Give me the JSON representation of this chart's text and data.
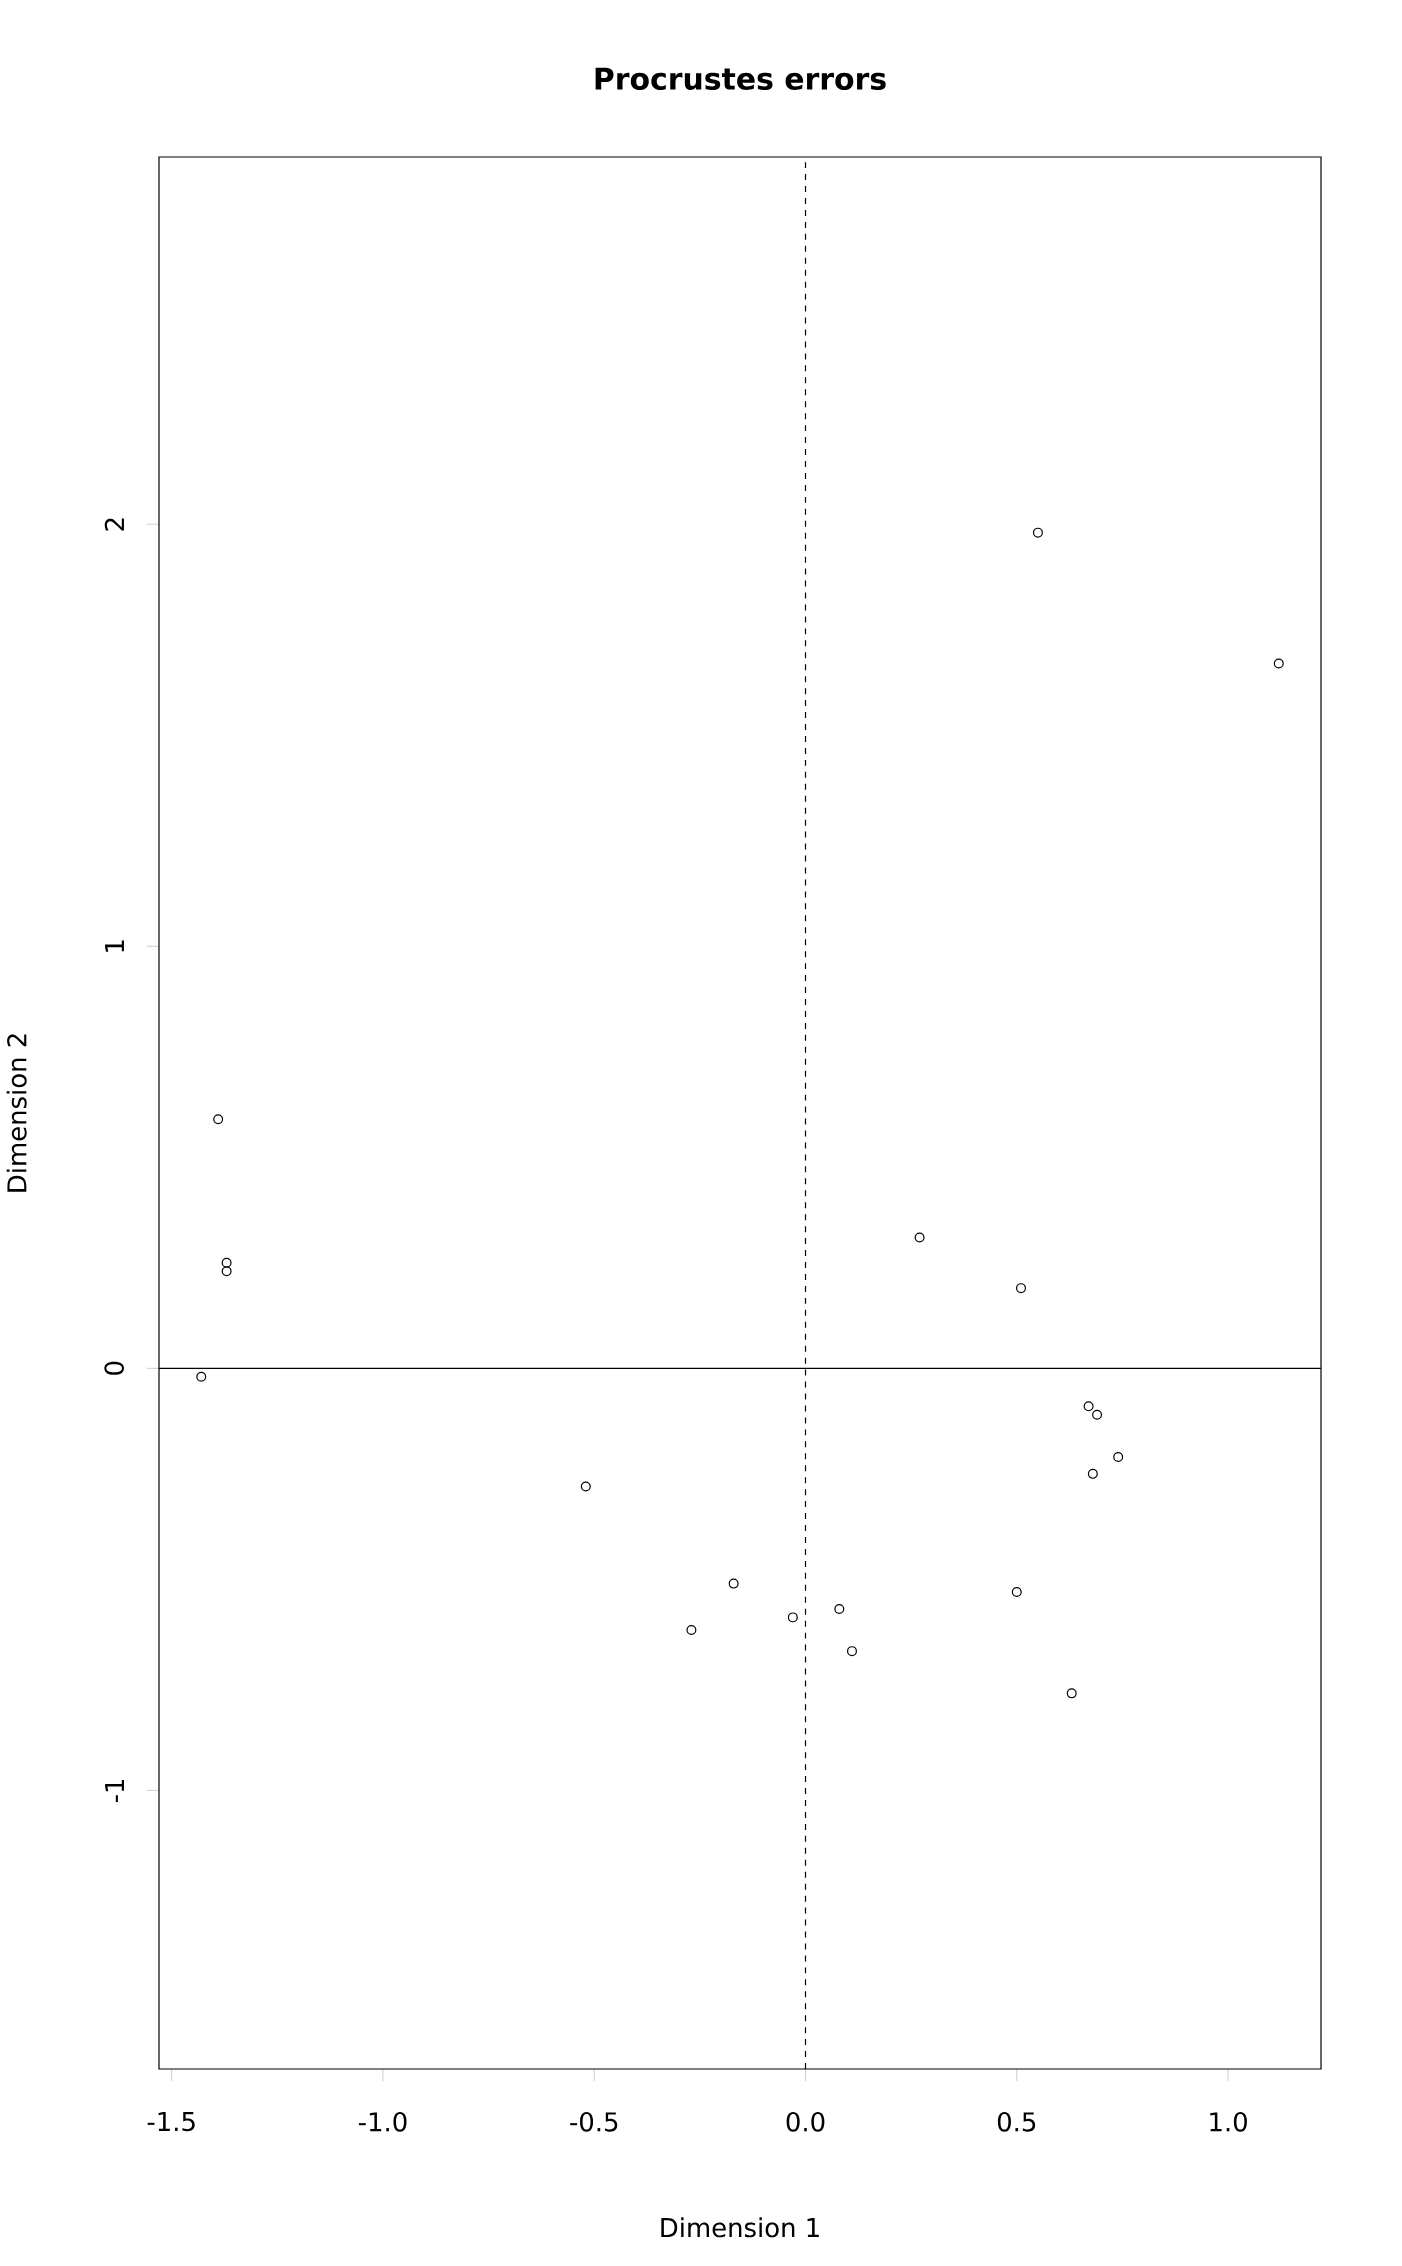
{
  "chart_data": {
    "type": "scatter",
    "title": "Procrustes errors",
    "xlabel": "Dimension 1",
    "ylabel": "Dimension 2",
    "x": [
      0.55,
      1.12,
      -1.39,
      -1.37,
      -1.37,
      -1.43,
      0.27,
      0.51,
      0.67,
      0.69,
      0.74,
      0.68,
      -0.52,
      -0.17,
      -0.27,
      -0.03,
      0.08,
      0.11,
      0.5,
      0.63
    ],
    "values": [
      1.98,
      1.67,
      0.59,
      0.25,
      0.23,
      -0.02,
      0.31,
      0.19,
      -0.09,
      -0.11,
      -0.21,
      -0.25,
      -0.28,
      -0.51,
      -0.62,
      -0.59,
      -0.57,
      -0.67,
      -0.53,
      -0.77
    ],
    "color": "#000000",
    "marker": "circle",
    "xlim": [
      -1.53,
      1.22
    ],
    "ylim": [
      -1.66,
      2.87
    ],
    "xticks": [
      {
        "value": -1.5,
        "label": "-1.5"
      },
      {
        "value": -1.0,
        "label": "-1.0"
      },
      {
        "value": -0.5,
        "label": "-0.5"
      },
      {
        "value": 0,
        "label": "0.0"
      },
      {
        "value": 0.5,
        "label": "0.5"
      },
      {
        "value": 1.0,
        "label": "1.0"
      }
    ],
    "yticks": [
      -1,
      0,
      1,
      2
    ],
    "ref_lines": [
      {
        "axis": "x",
        "value": 0,
        "line_style": "dashed"
      },
      {
        "axis": "y",
        "value": 0,
        "line_style": "solid"
      }
    ]
  }
}
